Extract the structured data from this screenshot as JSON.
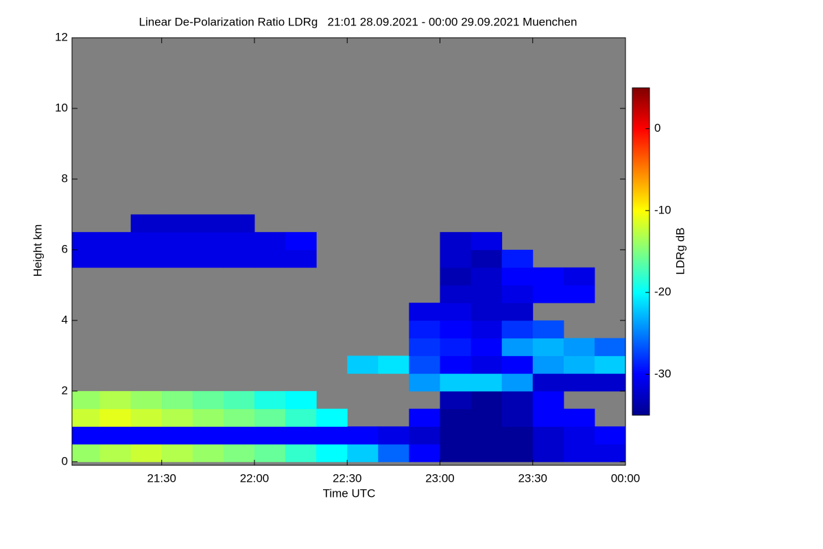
{
  "chart_data": {
    "type": "heatmap",
    "title": "Linear De-Polarization Ratio LDRg   21:01 28.09.2021 - 00:00 29.09.2021 Muenchen",
    "x_label": "Time UTC",
    "y_label": "Height km",
    "colorbar_label": "LDRg dB",
    "xlim": [
      21.0167,
      24
    ],
    "ylim": [
      -0.1,
      12
    ],
    "xticks": [
      {
        "value": 21.5,
        "label": "21:30"
      },
      {
        "value": 22,
        "label": "22:00"
      },
      {
        "value": 22.5,
        "label": "22:30"
      },
      {
        "value": 23,
        "label": "23:00"
      },
      {
        "value": 23.5,
        "label": "23:30"
      },
      {
        "value": 24,
        "label": "00:00"
      }
    ],
    "yticks": [
      0,
      2,
      4,
      6,
      8,
      10,
      12
    ],
    "clim": [
      -35,
      5
    ],
    "cticks": [
      0,
      -10,
      -20,
      -30
    ],
    "colormap": "jet",
    "background": "#808080",
    "x_bins": [
      21.0,
      21.1667,
      21.3333,
      21.5,
      21.6667,
      21.8333,
      22.0,
      22.1667,
      22.3333,
      22.5,
      22.6667,
      22.8333,
      23.0,
      23.1667,
      23.3333,
      23.5,
      23.6667,
      23.8333,
      24.0
    ],
    "y_bins": [
      0,
      0.5,
      1,
      1.5,
      2,
      2.5,
      3,
      3.5,
      4,
      4.5,
      5,
      5.5,
      6,
      6.5,
      7
    ],
    "values": [
      [
        -14,
        -13,
        -12,
        -13,
        -14,
        -15,
        -16,
        -18,
        -20,
        -22,
        -26,
        -30,
        -34,
        -34,
        -34,
        -32,
        -31,
        -31
      ],
      [
        -30,
        -30,
        -30,
        -30,
        -30,
        -30,
        -30,
        -30,
        -30,
        -30,
        -31,
        -32,
        -34,
        -34,
        -34,
        -32,
        -31,
        -30
      ],
      [
        -12,
        -11,
        -12,
        -13,
        -14,
        -15,
        -16,
        -18,
        -20,
        null,
        null,
        -30,
        -34,
        -34,
        -33,
        -30,
        -30,
        null
      ],
      [
        -14,
        -13,
        -14,
        -15,
        -16,
        -17,
        -19,
        -20,
        null,
        null,
        null,
        null,
        -33,
        -34,
        -33,
        -30,
        null,
        null
      ],
      [
        null,
        null,
        null,
        null,
        null,
        null,
        null,
        null,
        null,
        null,
        null,
        -24,
        -22,
        -22,
        -24,
        -32,
        -32,
        -32
      ],
      [
        null,
        null,
        null,
        null,
        null,
        null,
        null,
        null,
        null,
        -22,
        -21,
        -27,
        -30,
        -31,
        -30,
        -24,
        -23,
        -22
      ],
      [
        null,
        null,
        null,
        null,
        null,
        null,
        null,
        null,
        null,
        null,
        null,
        -28,
        -29,
        -30,
        -24,
        -23,
        -24,
        -26
      ],
      [
        null,
        null,
        null,
        null,
        null,
        null,
        null,
        null,
        null,
        null,
        null,
        -29,
        -30,
        -31,
        -28,
        -27,
        null,
        null
      ],
      [
        null,
        null,
        null,
        null,
        null,
        null,
        null,
        null,
        null,
        null,
        null,
        -31,
        -31,
        -32,
        -32,
        null,
        null,
        null
      ],
      [
        null,
        null,
        null,
        null,
        null,
        null,
        null,
        null,
        null,
        null,
        null,
        null,
        -32,
        -32,
        -31,
        -30,
        -30,
        null
      ],
      [
        null,
        null,
        null,
        null,
        null,
        null,
        null,
        null,
        null,
        null,
        null,
        null,
        -33,
        -32,
        -30,
        -30,
        -31,
        null
      ],
      [
        -31,
        -31,
        -31,
        -31,
        -31,
        -31,
        -31,
        -31,
        null,
        null,
        null,
        null,
        -32,
        -33,
        -29,
        null,
        null,
        null
      ],
      [
        -31,
        -31,
        -31,
        -31,
        -31,
        -31,
        -31,
        -30,
        null,
        null,
        null,
        null,
        -32,
        -31,
        null,
        null,
        null,
        null
      ],
      [
        null,
        null,
        -32,
        -32,
        -32,
        -32,
        null,
        null,
        null,
        null,
        null,
        null,
        null,
        null,
        null,
        null,
        null,
        null
      ]
    ]
  }
}
